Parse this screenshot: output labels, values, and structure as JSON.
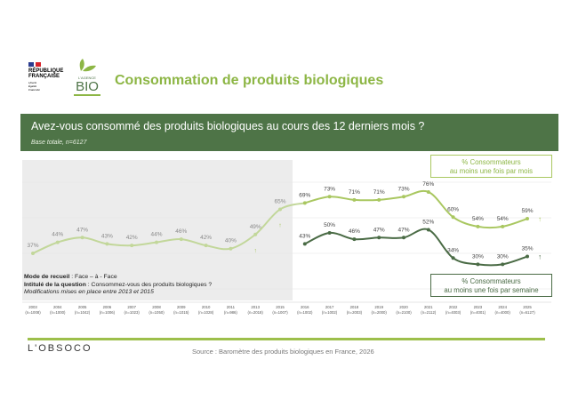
{
  "header": {
    "title": "Consommation de produits biologiques",
    "logo_rf": {
      "line1": "RÉPUBLIQUE",
      "line2": "FRANÇAISE",
      "motto": "Liberté Égalité Fraternité"
    },
    "logo_bio": {
      "top": "L'AGENCE",
      "main": "BIO"
    }
  },
  "banner": {
    "question": "Avez-vous consommé des produits biologiques au cours des 12 derniers mois ?",
    "base": "Base totale, n=6127"
  },
  "notes": {
    "mode_label": "Mode de recueil",
    "mode_value": " : Face – à - Face",
    "question_label": "Intitulé de la question",
    "question_value": " : Consommez-vous des produits biologiques ?",
    "modifications": "Modifications mises en place entre 2013 et 2015"
  },
  "colors": {
    "banner": "#4e7447",
    "title": "#8db645",
    "monthly": "#a9c760",
    "weekly": "#4a6b45",
    "shade": "#ececec",
    "rule": "#9dbf4b"
  },
  "chart_data": {
    "type": "line",
    "categories": [
      "2003",
      "2004",
      "2005",
      "2006",
      "2007",
      "2008",
      "2009",
      "2010",
      "2011",
      "2013",
      "2015",
      "2016",
      "2017",
      "2018",
      "2019",
      "2020",
      "2021",
      "2022",
      "2023",
      "2024",
      "2025"
    ],
    "sample_sizes": [
      "(n=1008)",
      "(n=1000)",
      "(n=1042)",
      "(n=1006)",
      "(n=1023)",
      "(n=1050)",
      "(n=1015)",
      "(n=1028)",
      "(n=986)",
      "(n=2018)",
      "(n=1007)",
      "(n=1002)",
      "(n=1002)",
      "(n=2003)",
      "(n=2000)",
      "(n=2100)",
      "(n=2112)",
      "(n=4003)",
      "(n=4001)",
      "(n=4000)",
      "(n=6127)"
    ],
    "unit": "%",
    "series": [
      {
        "name": "% Consommateurs au moins une fois par mois",
        "name_line1": "% Consommateurs",
        "name_line2": "au moins une fois par mois",
        "values": [
          37,
          44,
          47,
          43,
          42,
          44,
          46,
          42,
          40,
          49,
          65,
          69,
          73,
          71,
          71,
          73,
          76,
          60,
          54,
          54,
          59
        ]
      },
      {
        "name": "% Consommateurs au moins une fois par semaine",
        "name_line1": "% Consommateurs",
        "name_line2": "au moins une fois par semaine",
        "values": [
          null,
          null,
          null,
          null,
          null,
          null,
          null,
          null,
          null,
          null,
          null,
          43,
          50,
          46,
          47,
          47,
          52,
          34,
          30,
          30,
          35
        ]
      }
    ],
    "shaded_period": [
      "2003",
      "2015"
    ],
    "significant_up_markers": [
      "2013",
      "2015",
      "2025"
    ],
    "grid": true
  },
  "footer": {
    "logo": "L'OBSOCO",
    "source": "Source : Baromètre des produits biologiques en France, 2026"
  }
}
